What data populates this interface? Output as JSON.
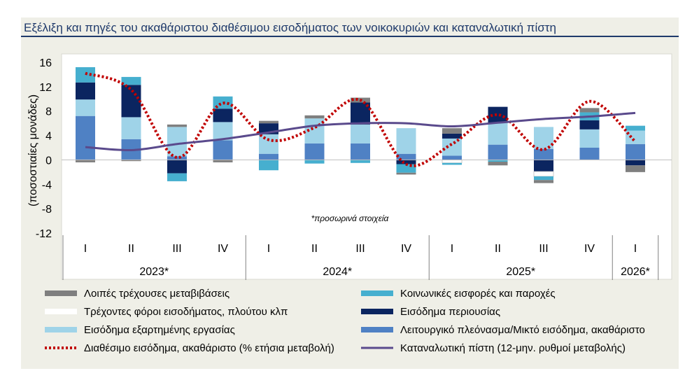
{
  "title": "Εξέλιξη και πηγές του ακαθάριστου διαθέσιμου εισοδήματος των νοικοκυριών και καταναλωτική πίστη",
  "colors": {
    "frame_bg": "#efefe7",
    "title": "#1f3a6b",
    "title_rule": "#1f3a6b",
    "other": "#7f7f7f",
    "taxes": "#ffffff",
    "employment": "#9fd3e8",
    "social": "#46afcf",
    "property": "#0b2560",
    "operating": "#4f81c4",
    "disposable_line": "#c00000",
    "credit_line": "#5a4a8c"
  },
  "chart_data": {
    "type": "bar",
    "title": "Εξέλιξη και πηγές του ακαθάριστου διαθέσιμου εισοδήματος των νοικοκυριών και καταναλωτική πίστη",
    "ylabel": "(ποσοστιαίες μονάδες)",
    "ylim": [
      -12,
      16
    ],
    "yticks": [
      16,
      12,
      8,
      4,
      0,
      -4,
      -8,
      -12
    ],
    "grid": false,
    "legend_position": "bottom",
    "note": "*προσωρινά στοιχεία",
    "categories": [
      "I",
      "II",
      "III",
      "IV",
      "I",
      "II",
      "III",
      "IV",
      "I",
      "II",
      "III",
      "IV",
      "I"
    ],
    "groups": [
      {
        "label": "2023*",
        "count": 4
      },
      {
        "label": "2024*",
        "count": 4
      },
      {
        "label": "2025*",
        "count": 4
      },
      {
        "label": "2026*",
        "count": 1
      }
    ],
    "stacked_series": [
      {
        "key": "operating",
        "name": "Λειτουργικό πλεόνασμα/Μικτό εισόδημα, ακαθάριστο",
        "values": [
          7.2,
          3.4,
          0.6,
          3.2,
          1.0,
          2.7,
          2.7,
          1.0,
          0.7,
          2.5,
          1.8,
          2.0,
          2.6
        ]
      },
      {
        "key": "employment",
        "name": "Εισόδημα εξαρτημένης εργασίας",
        "values": [
          2.7,
          3.6,
          4.8,
          3.0,
          3.2,
          4.1,
          3.1,
          4.2,
          2.8,
          3.6,
          3.6,
          3.0,
          2.2
        ]
      },
      {
        "key": "property",
        "name": "Εισόδημα περιουσίας",
        "values": [
          2.8,
          5.3,
          -2.2,
          2.2,
          1.8,
          0.0,
          3.6,
          -0.7,
          0.8,
          2.6,
          -1.9,
          1.5,
          -0.9
        ]
      },
      {
        "key": "taxes",
        "name": "Τρέχοντες φόροι εισοδήματος, πλούτου κλπ",
        "values": [
          0.0,
          0.0,
          0.0,
          0.0,
          0.0,
          0.0,
          0.0,
          0.0,
          -0.5,
          0.0,
          -0.8,
          0.0,
          0.0
        ]
      },
      {
        "key": "social",
        "name": "Κοινωνικές εισφορές και παροχές",
        "values": [
          2.5,
          1.3,
          -1.3,
          2.0,
          -1.7,
          -0.6,
          -0.5,
          -1.4,
          -0.3,
          -0.3,
          -0.6,
          1.3,
          0.8
        ]
      },
      {
        "key": "other",
        "name": "Λοιπές τρέχουσες μεταβιβάσεις",
        "values": [
          -0.4,
          -0.2,
          0.4,
          -0.4,
          0.4,
          0.5,
          0.8,
          -0.3,
          0.9,
          -0.6,
          -0.5,
          0.7,
          -1.1
        ]
      }
    ],
    "line_series": [
      {
        "key": "disposable_line",
        "name": "Διαθέσιμο εισόδημα, ακαθάριστο (% ετήσια μεταβολή)",
        "style": "dotted",
        "values": [
          14.2,
          11.5,
          0.4,
          9.3,
          3.3,
          5.3,
          9.8,
          -0.7,
          2.6,
          7.4,
          1.7,
          9.6,
          3.0
        ]
      },
      {
        "key": "credit_line",
        "name": "Καταναλωτική πίστη (12-μην. ρυθμοί μεταβολής)",
        "style": "solid",
        "values": [
          2.1,
          1.6,
          2.6,
          3.4,
          4.5,
          5.6,
          6.0,
          6.0,
          5.5,
          6.1,
          6.7,
          7.1,
          7.7
        ]
      }
    ]
  },
  "legend": [
    {
      "key": "other",
      "label": "Λοιπές τρέχουσες μεταβιβάσεις",
      "kind": "bar"
    },
    {
      "key": "social",
      "label": "Κοινωνικές εισφορές και παροχές",
      "kind": "bar"
    },
    {
      "key": "taxes",
      "label": "Τρέχοντες φόροι εισοδήματος, πλούτου κλπ",
      "kind": "bar"
    },
    {
      "key": "property",
      "label": "Εισόδημα περιουσίας",
      "kind": "bar"
    },
    {
      "key": "employment",
      "label": "Εισόδημα εξαρτημένης εργασίας",
      "kind": "bar"
    },
    {
      "key": "operating",
      "label": "Λειτουργικό πλεόνασμα/Μικτό εισόδημα, ακαθάριστο",
      "kind": "bar"
    },
    {
      "key": "disposable_line",
      "label": "Διαθέσιμο εισόδημα, ακαθάριστο (% ετήσια μεταβολή)",
      "kind": "dotted"
    },
    {
      "key": "credit_line",
      "label": "Καταναλωτική πίστη (12-μην. ρυθμοί μεταβολής)",
      "kind": "line"
    }
  ]
}
